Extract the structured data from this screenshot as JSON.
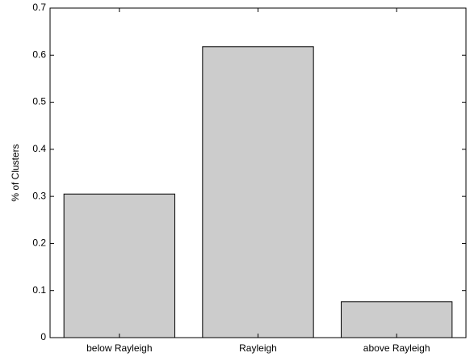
{
  "chart_data": {
    "type": "bar",
    "ylabel": "% of Clusters",
    "categories": [
      "below Rayleigh",
      "Rayleigh",
      "above Rayleigh"
    ],
    "values": [
      0.305,
      0.618,
      0.076
    ],
    "color": "#cccccc",
    "ylim": [
      0,
      0.7
    ],
    "yticks": [
      0,
      0.1,
      0.2,
      0.3,
      0.4,
      0.5,
      0.6,
      0.7
    ]
  }
}
